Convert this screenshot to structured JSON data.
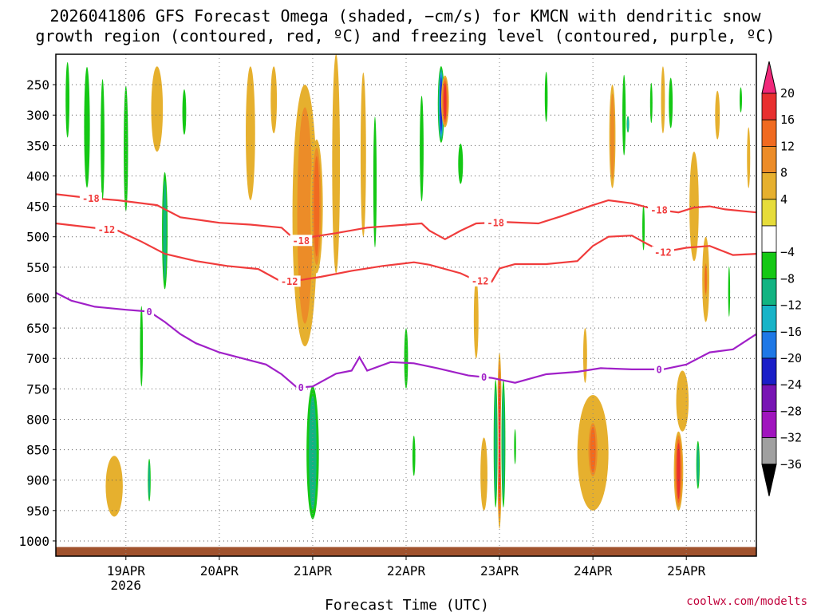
{
  "chart_data": {
    "type": "heatmap",
    "title_lines": [
      "2026041806 GFS Forecast Omega (shaded, −cm/s) for KMCN with dendritic snow",
      "growth region (contoured, red, ºC) and freezing level (contoured, purple, ºC)"
    ],
    "xlabel": "Forecast Time (UTC)",
    "ylabel": "",
    "credit": "coolwx.com/modelts",
    "x_range_hours": [
      0,
      180
    ],
    "x_ticks": [
      {
        "hours": 18,
        "label": "19APR",
        "sublabel": "2026"
      },
      {
        "hours": 42,
        "label": "20APR",
        "sublabel": ""
      },
      {
        "hours": 66,
        "label": "21APR",
        "sublabel": ""
      },
      {
        "hours": 90,
        "label": "22APR",
        "sublabel": ""
      },
      {
        "hours": 114,
        "label": "23APR",
        "sublabel": ""
      },
      {
        "hours": 138,
        "label": "24APR",
        "sublabel": ""
      },
      {
        "hours": 162,
        "label": "25APR",
        "sublabel": ""
      }
    ],
    "y_levels_hpa": [
      250,
      300,
      350,
      400,
      450,
      500,
      550,
      600,
      650,
      700,
      750,
      800,
      850,
      900,
      950,
      1000
    ],
    "y_range_hpa": [
      200,
      1025
    ],
    "surface_pressure_hpa": 1010,
    "colorbar": {
      "labels": [
        "20",
        "16",
        "12",
        "8",
        "4",
        "−4",
        "−8",
        "−12",
        "−16",
        "−20",
        "−24",
        "−28",
        "−32",
        "−36"
      ],
      "colors": [
        "#f0287a",
        "#e82f2f",
        "#f06a20",
        "#ec8c28",
        "#e6b02e",
        "#e6dc3a",
        "#ffffff",
        "#14c814",
        "#12b482",
        "#18b4c8",
        "#1e78e6",
        "#1a1ec8",
        "#7814b4",
        "#a014be",
        "#a0a0a0",
        "#000000"
      ]
    },
    "contours": [
      {
        "name": "dgz_minus18",
        "color": "#f03c3c",
        "label": "-18",
        "label_hours": [
          9,
          63,
          113,
          155
        ],
        "points": [
          [
            0,
            430
          ],
          [
            8,
            436
          ],
          [
            16,
            440
          ],
          [
            26,
            448
          ],
          [
            32,
            468
          ],
          [
            42,
            477
          ],
          [
            50,
            480
          ],
          [
            58,
            485
          ],
          [
            62,
            508
          ],
          [
            66,
            500
          ],
          [
            72,
            494
          ],
          [
            80,
            485
          ],
          [
            90,
            480
          ],
          [
            94,
            478
          ],
          [
            96,
            490
          ],
          [
            100,
            504
          ],
          [
            104,
            490
          ],
          [
            108,
            478
          ],
          [
            116,
            476
          ],
          [
            124,
            478
          ],
          [
            130,
            466
          ],
          [
            138,
            448
          ],
          [
            142,
            440
          ],
          [
            148,
            445
          ],
          [
            154,
            455
          ],
          [
            160,
            460
          ],
          [
            164,
            452
          ],
          [
            168,
            450
          ],
          [
            172,
            455
          ],
          [
            180,
            460
          ]
        ]
      },
      {
        "name": "dgz_minus12",
        "color": "#f03c3c",
        "label": "-12",
        "label_hours": [
          13,
          60,
          109,
          156
        ],
        "points": [
          [
            0,
            478
          ],
          [
            8,
            484
          ],
          [
            16,
            490
          ],
          [
            22,
            508
          ],
          [
            28,
            528
          ],
          [
            36,
            540
          ],
          [
            44,
            548
          ],
          [
            52,
            553
          ],
          [
            58,
            574
          ],
          [
            62,
            572
          ],
          [
            68,
            566
          ],
          [
            76,
            556
          ],
          [
            84,
            548
          ],
          [
            92,
            542
          ],
          [
            96,
            546
          ],
          [
            104,
            560
          ],
          [
            108,
            572
          ],
          [
            112,
            574
          ],
          [
            114,
            552
          ],
          [
            118,
            545
          ],
          [
            126,
            545
          ],
          [
            134,
            540
          ],
          [
            138,
            515
          ],
          [
            142,
            500
          ],
          [
            148,
            498
          ],
          [
            152,
            512
          ],
          [
            156,
            525
          ],
          [
            162,
            518
          ],
          [
            168,
            515
          ],
          [
            174,
            530
          ],
          [
            180,
            528
          ]
        ]
      },
      {
        "name": "freezing_level_0C",
        "color": "#a020c8",
        "label": "0",
        "label_hours": [
          24,
          63,
          110,
          155
        ],
        "points": [
          [
            0,
            592
          ],
          [
            4,
            605
          ],
          [
            10,
            615
          ],
          [
            18,
            620
          ],
          [
            24,
            623
          ],
          [
            28,
            640
          ],
          [
            32,
            660
          ],
          [
            36,
            675
          ],
          [
            42,
            690
          ],
          [
            48,
            700
          ],
          [
            54,
            710
          ],
          [
            58,
            726
          ],
          [
            62,
            748
          ],
          [
            66,
            746
          ],
          [
            72,
            725
          ],
          [
            76,
            720
          ],
          [
            78,
            698
          ],
          [
            80,
            720
          ],
          [
            86,
            706
          ],
          [
            92,
            708
          ],
          [
            98,
            716
          ],
          [
            106,
            728
          ],
          [
            112,
            732
          ],
          [
            118,
            740
          ],
          [
            126,
            726
          ],
          [
            134,
            722
          ],
          [
            140,
            716
          ],
          [
            148,
            718
          ],
          [
            156,
            718
          ],
          [
            162,
            710
          ],
          [
            168,
            690
          ],
          [
            174,
            685
          ],
          [
            180,
            660
          ]
        ]
      }
    ],
    "omega_features": [
      {
        "hour": 66,
        "p_top": 730,
        "p_bot": 980,
        "half_width_h": 2.2,
        "value": -14
      },
      {
        "hour": 64,
        "p_top": 250,
        "p_bot": 680,
        "half_width_h": 3.2,
        "value": 8
      },
      {
        "hour": 67,
        "p_top": 340,
        "p_bot": 560,
        "half_width_h": 1.6,
        "value": 12
      },
      {
        "hour": 99,
        "p_top": 215,
        "p_bot": 350,
        "half_width_h": 1.0,
        "value": -26
      },
      {
        "hour": 100,
        "p_top": 235,
        "p_bot": 320,
        "half_width_h": 1.0,
        "value": 16
      },
      {
        "hour": 114,
        "p_top": 690,
        "p_bot": 980,
        "half_width_h": 0.6,
        "value": 19
      },
      {
        "hour": 113,
        "p_top": 720,
        "p_bot": 960,
        "half_width_h": 0.7,
        "value": -14
      },
      {
        "hour": 115,
        "p_top": 720,
        "p_bot": 960,
        "half_width_h": 0.7,
        "value": -12
      },
      {
        "hour": 138,
        "p_top": 760,
        "p_bot": 950,
        "half_width_h": 4.0,
        "value": 7
      },
      {
        "hour": 138,
        "p_top": 800,
        "p_bot": 900,
        "half_width_h": 1.6,
        "value": 12
      },
      {
        "hour": 160,
        "p_top": 820,
        "p_bot": 950,
        "half_width_h": 1.2,
        "value": 17
      },
      {
        "hour": 161,
        "p_top": 720,
        "p_bot": 820,
        "half_width_h": 1.6,
        "value": 7
      },
      {
        "hour": 15,
        "p_top": 860,
        "p_bot": 960,
        "half_width_h": 2.2,
        "value": 6
      },
      {
        "hour": 8,
        "p_top": 200,
        "p_bot": 440,
        "half_width_h": 1.2,
        "value": -9
      },
      {
        "hour": 3,
        "p_top": 200,
        "p_bot": 350,
        "half_width_h": 0.8,
        "value": -8
      },
      {
        "hour": 12,
        "p_top": 220,
        "p_bot": 460,
        "half_width_h": 0.8,
        "value": -10
      },
      {
        "hour": 18,
        "p_top": 230,
        "p_bot": 480,
        "half_width_h": 0.9,
        "value": -9
      },
      {
        "hour": 28,
        "p_top": 380,
        "p_bot": 600,
        "half_width_h": 1.0,
        "value": -12
      },
      {
        "hour": 33,
        "p_top": 250,
        "p_bot": 340,
        "half_width_h": 0.8,
        "value": -10
      },
      {
        "hour": 26,
        "p_top": 220,
        "p_bot": 360,
        "half_width_h": 1.5,
        "value": 6
      },
      {
        "hour": 22,
        "p_top": 600,
        "p_bot": 760,
        "half_width_h": 0.6,
        "value": -9
      },
      {
        "hour": 24,
        "p_top": 860,
        "p_bot": 940,
        "half_width_h": 0.5,
        "value": -14
      },
      {
        "hour": 50,
        "p_top": 220,
        "p_bot": 440,
        "half_width_h": 1.2,
        "value": 6
      },
      {
        "hour": 56,
        "p_top": 220,
        "p_bot": 330,
        "half_width_h": 0.8,
        "value": 5
      },
      {
        "hour": 72,
        "p_top": 200,
        "p_bot": 560,
        "half_width_h": 1.0,
        "value": 6
      },
      {
        "hour": 79,
        "p_top": 230,
        "p_bot": 500,
        "half_width_h": 0.7,
        "value": 5
      },
      {
        "hour": 82,
        "p_top": 280,
        "p_bot": 540,
        "half_width_h": 0.7,
        "value": -8
      },
      {
        "hour": 90,
        "p_top": 640,
        "p_bot": 760,
        "half_width_h": 0.8,
        "value": -10
      },
      {
        "hour": 92,
        "p_top": 820,
        "p_bot": 900,
        "half_width_h": 0.6,
        "value": -8
      },
      {
        "hour": 94,
        "p_top": 250,
        "p_bot": 460,
        "half_width_h": 0.8,
        "value": -9
      },
      {
        "hour": 104,
        "p_top": 340,
        "p_bot": 420,
        "half_width_h": 1.0,
        "value": -8
      },
      {
        "hour": 108,
        "p_top": 570,
        "p_bot": 700,
        "half_width_h": 0.6,
        "value": 5
      },
      {
        "hour": 110,
        "p_top": 830,
        "p_bot": 950,
        "half_width_h": 0.9,
        "value": 6
      },
      {
        "hour": 118,
        "p_top": 810,
        "p_bot": 880,
        "half_width_h": 0.4,
        "value": -10
      },
      {
        "hour": 126,
        "p_top": 220,
        "p_bot": 320,
        "half_width_h": 0.6,
        "value": -8
      },
      {
        "hour": 136,
        "p_top": 650,
        "p_bot": 740,
        "half_width_h": 0.5,
        "value": 6
      },
      {
        "hour": 143,
        "p_top": 250,
        "p_bot": 420,
        "half_width_h": 0.8,
        "value": 8
      },
      {
        "hour": 146,
        "p_top": 220,
        "p_bot": 380,
        "half_width_h": 0.7,
        "value": -10
      },
      {
        "hour": 147,
        "p_top": 300,
        "p_bot": 330,
        "half_width_h": 0.4,
        "value": -16
      },
      {
        "hour": 151,
        "p_top": 440,
        "p_bot": 530,
        "half_width_h": 0.5,
        "value": -8
      },
      {
        "hour": 153,
        "p_top": 240,
        "p_bot": 320,
        "half_width_h": 0.5,
        "value": -9
      },
      {
        "hour": 156,
        "p_top": 220,
        "p_bot": 330,
        "half_width_h": 0.5,
        "value": 5
      },
      {
        "hour": 158,
        "p_top": 230,
        "p_bot": 330,
        "half_width_h": 0.8,
        "value": -8
      },
      {
        "hour": 164,
        "p_top": 360,
        "p_bot": 540,
        "half_width_h": 1.2,
        "value": 5
      },
      {
        "hour": 165,
        "p_top": 830,
        "p_bot": 920,
        "half_width_h": 0.6,
        "value": -12
      },
      {
        "hour": 167,
        "p_top": 500,
        "p_bot": 640,
        "half_width_h": 0.9,
        "value": 7
      },
      {
        "hour": 167,
        "p_top": 540,
        "p_bot": 600,
        "half_width_h": 0.5,
        "value": 12
      },
      {
        "hour": 170,
        "p_top": 260,
        "p_bot": 340,
        "half_width_h": 0.6,
        "value": 6
      },
      {
        "hour": 173,
        "p_top": 540,
        "p_bot": 640,
        "half_width_h": 0.4,
        "value": -8
      },
      {
        "hour": 176,
        "p_top": 250,
        "p_bot": 300,
        "half_width_h": 0.5,
        "value": -8
      },
      {
        "hour": 178,
        "p_top": 320,
        "p_bot": 420,
        "half_width_h": 0.4,
        "value": 6
      }
    ]
  }
}
